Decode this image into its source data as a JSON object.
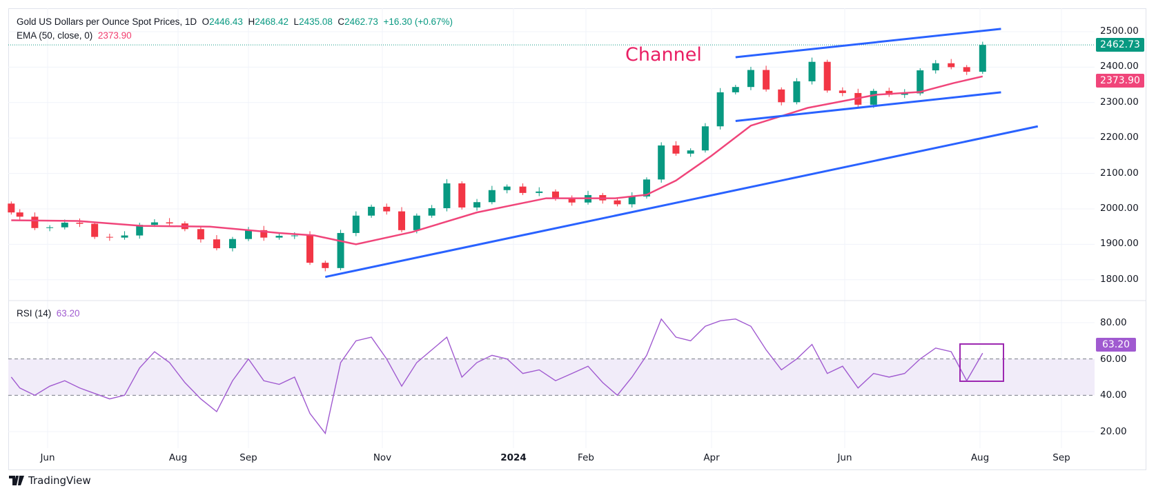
{
  "header": {
    "symbol": "Gold US Dollars per Ounce Spot Prices, 1D",
    "o_label": "O",
    "open": "2446.43",
    "h_label": "H",
    "high": "2468.42",
    "l_label": "L",
    "low": "2435.08",
    "c_label": "C",
    "close": "2462.73",
    "change": "+16.30 (+0.67%)",
    "ema_label": "EMA (50, close, 0)",
    "ema_value": "2373.90",
    "rsi_label": "RSI (14)",
    "rsi_value": "63.20"
  },
  "annotation": "Channel",
  "price_tags": {
    "last": "2462.73",
    "ema": "2373.90",
    "rsi": "63.20"
  },
  "branding": "TradingView",
  "colors": {
    "up": "#089981",
    "down": "#f23645",
    "ema": "#f0457a",
    "trendline": "#2962ff",
    "rsi": "#a05ad0",
    "rsi_band": "#f1ecf9",
    "annotation": "#e91e63",
    "rsi_box": "#9c27b0"
  },
  "chart_data": [
    {
      "type": "candlestick",
      "title": "Gold US Dollars per Ounce Spot Prices, 1D",
      "ylim": [
        1750,
        2550
      ],
      "grid": true,
      "y_ticks": [
        "2500.00",
        "2400.00",
        "2300.00",
        "2200.00",
        "2100.00",
        "2000.00",
        "1900.00",
        "1800.00"
      ],
      "x_ticks": [
        {
          "date": "2023-06-01",
          "label": "Jun"
        },
        {
          "date": "2023-08-01",
          "label": "Aug"
        },
        {
          "date": "2023-09-01",
          "label": "Sep"
        },
        {
          "date": "2023-11-01",
          "label": "Nov"
        },
        {
          "date": "2024-01-01",
          "label": "2024"
        },
        {
          "date": "2024-02-01",
          "label": "Feb"
        },
        {
          "date": "2024-04-01",
          "label": "Apr"
        },
        {
          "date": "2024-06-01",
          "label": "Jun"
        },
        {
          "date": "2024-08-01",
          "label": "Aug"
        },
        {
          "date": "2024-09-01",
          "label": "Sep"
        }
      ],
      "first_open": 2015,
      "closes": [
        [
          "2023-05-15",
          1990
        ],
        [
          "2023-05-19",
          1978
        ],
        [
          "2023-05-26",
          1946
        ],
        [
          "2023-06-02",
          1948
        ],
        [
          "2023-06-09",
          1961
        ],
        [
          "2023-06-16",
          1958
        ],
        [
          "2023-06-23",
          1921
        ],
        [
          "2023-06-30",
          1919
        ],
        [
          "2023-07-07",
          1925
        ],
        [
          "2023-07-14",
          1955
        ],
        [
          "2023-07-21",
          1962
        ],
        [
          "2023-07-28",
          1959
        ],
        [
          "2023-08-04",
          1943
        ],
        [
          "2023-08-11",
          1914
        ],
        [
          "2023-08-18",
          1889
        ],
        [
          "2023-08-25",
          1915
        ],
        [
          "2023-09-01",
          1940
        ],
        [
          "2023-09-08",
          1919
        ],
        [
          "2023-09-15",
          1924
        ],
        [
          "2023-09-22",
          1925
        ],
        [
          "2023-09-29",
          1848
        ],
        [
          "2023-10-06",
          1833
        ],
        [
          "2023-10-13",
          1932
        ],
        [
          "2023-10-20",
          1981
        ],
        [
          "2023-10-27",
          2006
        ],
        [
          "2023-11-03",
          1993
        ],
        [
          "2023-11-10",
          1940
        ],
        [
          "2023-11-17",
          1981
        ],
        [
          "2023-11-24",
          2002
        ],
        [
          "2023-12-01",
          2072
        ],
        [
          "2023-12-08",
          2004
        ],
        [
          "2023-12-15",
          2019
        ],
        [
          "2023-12-22",
          2053
        ],
        [
          "2023-12-29",
          2063
        ],
        [
          "2024-01-05",
          2045
        ],
        [
          "2024-01-12",
          2049
        ],
        [
          "2024-01-19",
          2029
        ],
        [
          "2024-01-26",
          2018
        ],
        [
          "2024-02-02",
          2039
        ],
        [
          "2024-02-09",
          2024
        ],
        [
          "2024-02-16",
          2013
        ],
        [
          "2024-02-23",
          2035
        ],
        [
          "2024-03-01",
          2083
        ],
        [
          "2024-03-08",
          2179
        ],
        [
          "2024-03-15",
          2156
        ],
        [
          "2024-03-22",
          2165
        ],
        [
          "2024-03-29",
          2233
        ],
        [
          "2024-04-05",
          2329
        ],
        [
          "2024-04-12",
          2344
        ],
        [
          "2024-04-19",
          2392
        ],
        [
          "2024-04-26",
          2337
        ],
        [
          "2024-05-03",
          2301
        ],
        [
          "2024-05-10",
          2360
        ],
        [
          "2024-05-17",
          2415
        ],
        [
          "2024-05-24",
          2334
        ],
        [
          "2024-05-31",
          2327
        ],
        [
          "2024-06-07",
          2294
        ],
        [
          "2024-06-14",
          2333
        ],
        [
          "2024-06-21",
          2322
        ],
        [
          "2024-06-28",
          2326
        ],
        [
          "2024-07-05",
          2391
        ],
        [
          "2024-07-12",
          2411
        ],
        [
          "2024-07-19",
          2400
        ],
        [
          "2024-07-26",
          2387
        ],
        [
          "2024-08-02",
          2462.73
        ]
      ],
      "ema": [
        [
          "2023-05-15",
          1968
        ],
        [
          "2023-06-15",
          1966
        ],
        [
          "2023-07-15",
          1952
        ],
        [
          "2023-08-15",
          1950
        ],
        [
          "2023-09-15",
          1932
        ],
        [
          "2023-10-01",
          1925
        ],
        [
          "2023-10-20",
          1900
        ],
        [
          "2023-11-15",
          1935
        ],
        [
          "2023-12-15",
          1990
        ],
        [
          "2024-01-15",
          2030
        ],
        [
          "2024-02-15",
          2030
        ],
        [
          "2024-03-01",
          2040
        ],
        [
          "2024-03-15",
          2080
        ],
        [
          "2024-04-01",
          2150
        ],
        [
          "2024-04-19",
          2235
        ],
        [
          "2024-05-15",
          2285
        ],
        [
          "2024-06-15",
          2322
        ],
        [
          "2024-07-05",
          2330
        ],
        [
          "2024-07-20",
          2355
        ],
        [
          "2024-08-02",
          2373.9
        ]
      ],
      "trendlines": [
        {
          "name": "support",
          "from": [
            "2023-10-06",
            1808
          ],
          "to": [
            "2024-08-23",
            2233
          ]
        },
        {
          "name": "channel-upper",
          "from": [
            "2024-04-12",
            2428
          ],
          "to": [
            "2024-08-09",
            2508
          ]
        },
        {
          "name": "channel-lower",
          "from": [
            "2024-04-12",
            2248
          ],
          "to": [
            "2024-08-09",
            2329
          ]
        }
      ]
    },
    {
      "type": "line",
      "title": "RSI (14)",
      "ylim": [
        10,
        92
      ],
      "y_ticks": [
        "80.00",
        "60.00",
        "40.00",
        "20.00"
      ],
      "band": [
        40,
        60
      ],
      "values": [
        50,
        44,
        40,
        45,
        48,
        44,
        41,
        38,
        40,
        55,
        64,
        58,
        47,
        38,
        31,
        48,
        60,
        48,
        46,
        50,
        30,
        19,
        58,
        70,
        72,
        60,
        45,
        58,
        65,
        72,
        50,
        58,
        62,
        60,
        52,
        54,
        48,
        52,
        56,
        47,
        40,
        50,
        62,
        82,
        72,
        70,
        78,
        81,
        82,
        78,
        65,
        54,
        60,
        68,
        52,
        56,
        44,
        52,
        50,
        52,
        60,
        66,
        64,
        48,
        63.2
      ]
    }
  ]
}
